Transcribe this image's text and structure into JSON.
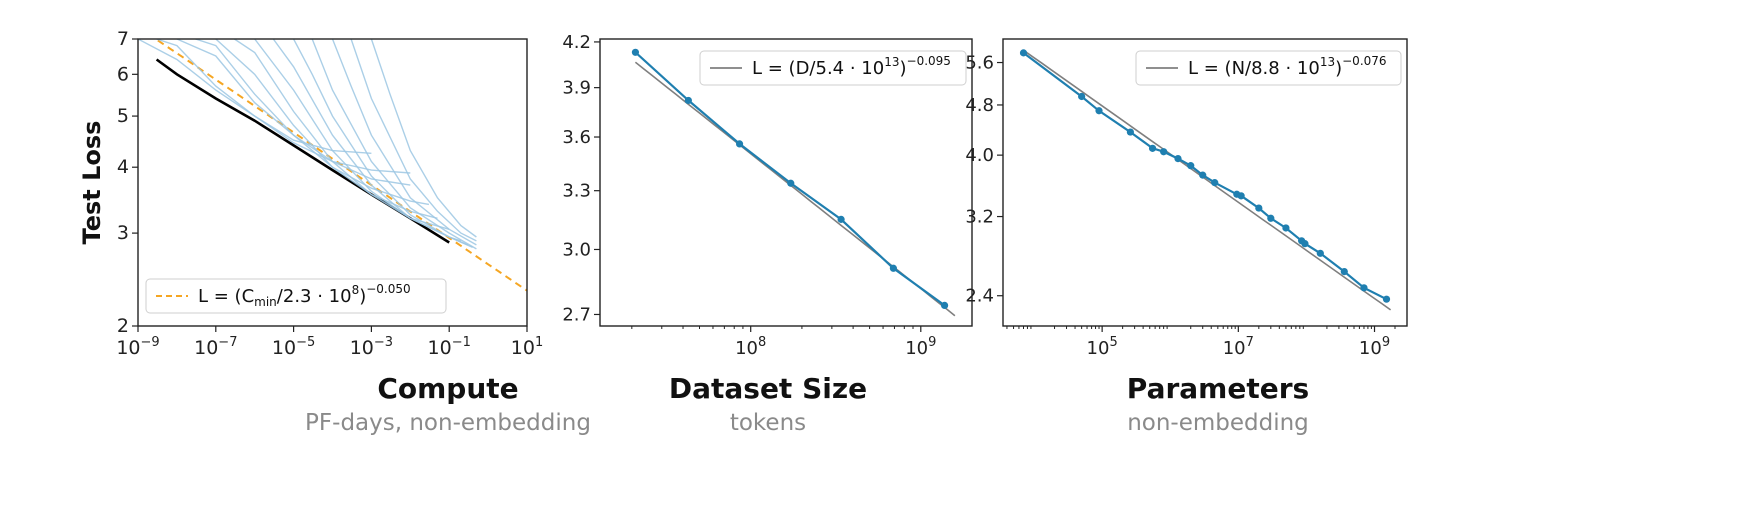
{
  "colors": {
    "blue_runs": "#9cc7e3",
    "frontier": "#000000",
    "fit_orange": "#f5a623",
    "data_teal": "#1f7fb0",
    "fit_gray": "#7f7f7f"
  },
  "chart_data": [
    {
      "type": "line",
      "log_x": true,
      "log_y": true,
      "xlim": [
        1e-09,
        10
      ],
      "ylim": [
        2,
        7
      ],
      "ylabel": "Test Loss",
      "caption_title": "Compute",
      "caption_subtitle": "PF-days, non-embedding",
      "x_tick_labels": [
        {
          "base": "10",
          "exp": "−9",
          "value": 1e-09
        },
        {
          "base": "10",
          "exp": "−7",
          "value": 1e-07
        },
        {
          "base": "10",
          "exp": "−5",
          "value": 1e-05
        },
        {
          "base": "10",
          "exp": "−3",
          "value": 0.001
        },
        {
          "base": "10",
          "exp": "−1",
          "value": 0.1
        },
        {
          "base": "10",
          "exp": "1",
          "value": 10
        }
      ],
      "y_tick_labels": [
        "2",
        "3",
        "4",
        "5",
        "6",
        "7"
      ],
      "y_tick_values": [
        2,
        3,
        4,
        5,
        6,
        7
      ],
      "legend": {
        "placement": "bottom-left",
        "entries": [
          {
            "text": "L = (C",
            "sub": "min",
            "rest": "/2.3 · 10",
            "sup_mid": "8",
            "close": ")",
            "sup": "−0.050",
            "style": "dashed-orange"
          }
        ]
      },
      "fit": {
        "c": 230000000.0,
        "alpha": 0.05
      },
      "series": [
        {
          "style": "frontier",
          "x": [
            3e-09,
            1e-08,
            1e-07,
            1e-06,
            1e-05,
            0.0001,
            0.001,
            0.01,
            0.1
          ],
          "y": [
            6.4,
            6.0,
            5.4,
            4.9,
            4.4,
            3.95,
            3.55,
            3.2,
            2.88
          ]
        },
        {
          "style": "run",
          "x": [
            1e-09,
            1e-08,
            1e-07,
            1e-06,
            1e-05,
            0.0001,
            0.001
          ],
          "y": [
            7.0,
            6.4,
            5.6,
            5.0,
            4.5,
            4.3,
            4.25
          ]
        },
        {
          "style": "run",
          "x": [
            3e-09,
            1e-08,
            1e-07,
            1e-06,
            1e-05,
            0.0001,
            0.001,
            0.01
          ],
          "y": [
            7.0,
            6.8,
            5.7,
            5.0,
            4.45,
            4.1,
            3.95,
            3.9
          ]
        },
        {
          "style": "run",
          "x": [
            1e-08,
            1e-07,
            1e-06,
            1e-05,
            0.0001,
            0.001,
            0.01
          ],
          "y": [
            7.0,
            6.5,
            5.3,
            4.6,
            4.1,
            3.8,
            3.7
          ]
        },
        {
          "style": "run",
          "x": [
            3e-08,
            1e-07,
            1e-06,
            1e-05,
            0.0001,
            0.001,
            0.01,
            0.03
          ],
          "y": [
            7.0,
            6.8,
            5.5,
            4.6,
            4.0,
            3.65,
            3.45,
            3.4
          ]
        },
        {
          "style": "run",
          "x": [
            1e-07,
            1e-06,
            1e-05,
            0.0001,
            0.001,
            0.01,
            0.05
          ],
          "y": [
            7.0,
            6.0,
            4.8,
            4.0,
            3.55,
            3.3,
            3.2
          ]
        },
        {
          "style": "run",
          "x": [
            3e-07,
            1e-06,
            1e-05,
            0.0001,
            0.001,
            0.01,
            0.1
          ],
          "y": [
            7.0,
            6.6,
            5.1,
            4.1,
            3.55,
            3.2,
            3.05
          ]
        },
        {
          "style": "run",
          "x": [
            1e-06,
            1e-05,
            0.0001,
            0.001,
            0.01,
            0.1,
            0.2
          ],
          "y": [
            7.0,
            5.6,
            4.3,
            3.6,
            3.2,
            2.95,
            2.9
          ]
        },
        {
          "style": "run",
          "x": [
            3e-06,
            1e-05,
            0.0001,
            0.001,
            0.01,
            0.1,
            0.3
          ],
          "y": [
            7.0,
            6.2,
            4.6,
            3.7,
            3.2,
            2.95,
            2.85
          ]
        },
        {
          "style": "run",
          "x": [
            1e-05,
            3e-05,
            0.0001,
            0.001,
            0.01,
            0.1,
            0.4
          ],
          "y": [
            7.0,
            6.0,
            5.0,
            3.85,
            3.25,
            2.95,
            2.82
          ]
        },
        {
          "style": "run",
          "x": [
            3e-05,
            0.0001,
            0.001,
            0.01,
            0.1,
            0.5
          ],
          "y": [
            7.0,
            5.6,
            4.1,
            3.35,
            3.0,
            2.8
          ]
        },
        {
          "style": "run",
          "x": [
            0.0001,
            0.0003,
            0.001,
            0.01,
            0.1,
            0.5
          ],
          "y": [
            7.0,
            5.7,
            4.6,
            3.5,
            3.05,
            2.85
          ]
        },
        {
          "style": "run",
          "x": [
            0.0003,
            0.001,
            0.01,
            0.05,
            0.2,
            0.5
          ],
          "y": [
            7.0,
            5.4,
            3.8,
            3.3,
            3.0,
            2.9
          ]
        },
        {
          "style": "run",
          "x": [
            0.001,
            0.003,
            0.01,
            0.05,
            0.2,
            0.5
          ],
          "y": [
            7.0,
            5.5,
            4.3,
            3.5,
            3.1,
            2.95
          ]
        }
      ]
    },
    {
      "type": "line",
      "log_x": true,
      "log_y": true,
      "xlim": [
        13000000.0,
        2000000000.0
      ],
      "ylim": [
        2.65,
        4.22
      ],
      "ylabel": "",
      "caption_title": "Dataset Size",
      "caption_subtitle": "tokens",
      "x_tick_labels": [
        {
          "base": "10",
          "exp": "8",
          "value": 100000000.0
        },
        {
          "base": "10",
          "exp": "9",
          "value": 1000000000.0
        }
      ],
      "y_tick_labels": [
        "2.7",
        "3.0",
        "3.3",
        "3.6",
        "3.9",
        "4.2"
      ],
      "y_tick_values": [
        2.7,
        3.0,
        3.3,
        3.6,
        3.9,
        4.2
      ],
      "legend": {
        "placement": "top-right",
        "entries": [
          {
            "text": "L = (D/5.4 · 10",
            "sup_mid": "13",
            "close": ")",
            "sup": "−0.095",
            "style": "solid-gray"
          }
        ]
      },
      "fit": {
        "c": 54000000000000.0,
        "alpha": 0.095
      },
      "series": [
        {
          "style": "data",
          "x": [
            21000000.0,
            43000000.0,
            86000000.0,
            172000000.0,
            340000000.0,
            690000000.0,
            1380000000.0
          ],
          "y": [
            4.13,
            3.82,
            3.56,
            3.34,
            3.15,
            2.91,
            2.74
          ]
        }
      ]
    },
    {
      "type": "line",
      "log_x": true,
      "log_y": true,
      "xlim": [
        3500.0,
        3000000000.0
      ],
      "ylim": [
        2.15,
        6.1
      ],
      "ylabel": "",
      "caption_title": "Parameters",
      "caption_subtitle": "non-embedding",
      "x_tick_labels": [
        {
          "base": "10",
          "exp": "5",
          "value": 100000.0
        },
        {
          "base": "10",
          "exp": "7",
          "value": 10000000.0
        },
        {
          "base": "10",
          "exp": "9",
          "value": 1000000000.0
        }
      ],
      "y_tick_labels": [
        "2.4",
        "3.2",
        "4.0",
        "4.8",
        "5.6"
      ],
      "y_tick_values": [
        2.4,
        3.2,
        4.0,
        4.8,
        5.6
      ],
      "legend": {
        "placement": "top-right",
        "entries": [
          {
            "text": "L = (N/8.8 · 10",
            "sup_mid": "13",
            "close": ")",
            "sup": "−0.076",
            "style": "solid-gray"
          }
        ]
      },
      "fit": {
        "c": 88000000000000.0,
        "alpha": 0.076
      },
      "series": [
        {
          "style": "data",
          "x": [
            7000.0,
            50000.0,
            90000.0,
            260000.0,
            550000.0,
            800000.0,
            1300000.0,
            2000000.0,
            3000000.0,
            4500000.0,
            9500000.0,
            11000000.0,
            20000000.0,
            30000000.0,
            50000000.0,
            85000000.0,
            95000000.0,
            160000000.0,
            360000000.0,
            700000000.0,
            1500000000.0
          ],
          "y": [
            5.8,
            4.95,
            4.7,
            4.35,
            4.1,
            4.05,
            3.95,
            3.85,
            3.72,
            3.62,
            3.47,
            3.45,
            3.3,
            3.18,
            3.07,
            2.93,
            2.9,
            2.8,
            2.62,
            2.47,
            2.37
          ]
        }
      ]
    }
  ]
}
